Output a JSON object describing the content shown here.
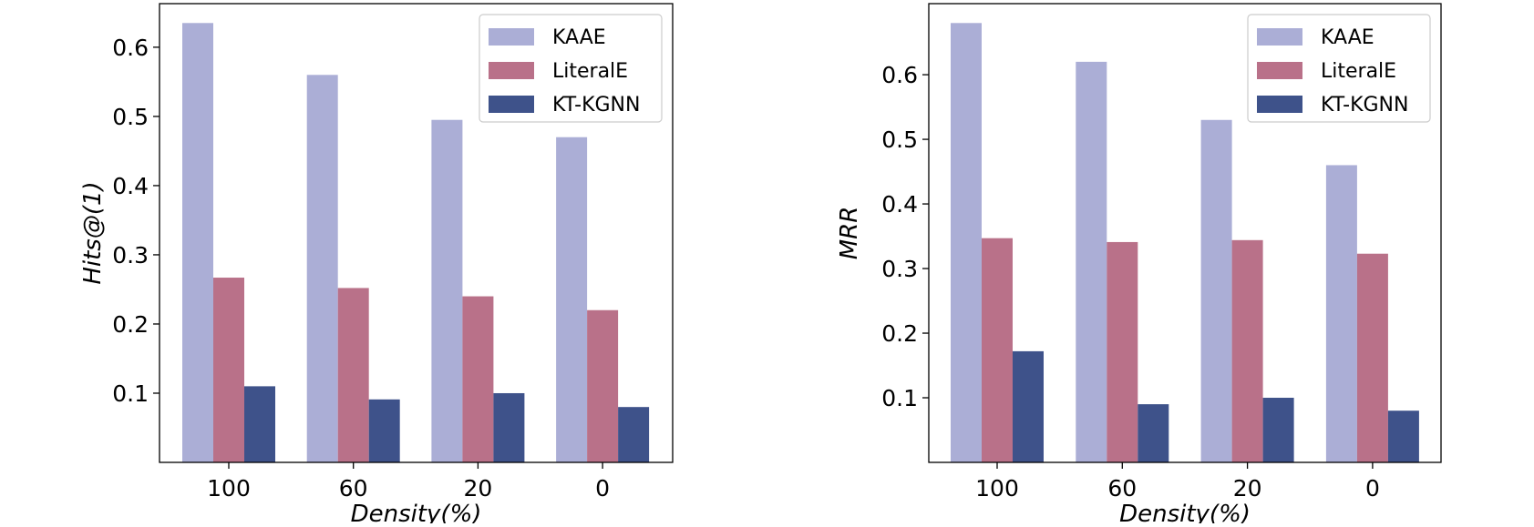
{
  "chart_data": [
    {
      "type": "bar",
      "categories": [
        "100",
        "60",
        "20",
        "0"
      ],
      "series": [
        {
          "name": "KAAE",
          "values": [
            0.635,
            0.56,
            0.495,
            0.47
          ]
        },
        {
          "name": "LiteralE",
          "values": [
            0.267,
            0.252,
            0.24,
            0.22
          ]
        },
        {
          "name": "KT-KGNN",
          "values": [
            0.11,
            0.091,
            0.1,
            0.08
          ]
        }
      ],
      "title": "",
      "xlabel": "Density(%)",
      "ylabel": "Hits@(1)",
      "ylim": [
        0.0,
        0.663
      ],
      "yticks": [
        "0.1",
        "0.2",
        "0.3",
        "0.4",
        "0.5",
        "0.6"
      ],
      "legend_position": "top-right",
      "grid": false
    },
    {
      "type": "bar",
      "categories": [
        "100",
        "60",
        "20",
        "0"
      ],
      "series": [
        {
          "name": "KAAE",
          "values": [
            0.68,
            0.62,
            0.53,
            0.46
          ]
        },
        {
          "name": "LiteralE",
          "values": [
            0.347,
            0.341,
            0.344,
            0.323
          ]
        },
        {
          "name": "KT-KGNN",
          "values": [
            0.172,
            0.09,
            0.1,
            0.08
          ]
        }
      ],
      "title": "",
      "xlabel": "Density(%)",
      "ylabel": "MRR",
      "ylim": [
        0.0,
        0.71
      ],
      "yticks": [
        "0.1",
        "0.2",
        "0.3",
        "0.4",
        "0.5",
        "0.6"
      ],
      "legend_position": "top-right",
      "grid": false
    }
  ],
  "colors": {
    "series": [
      "#abaed6",
      "#b97189",
      "#3e528a"
    ],
    "axis": "#000000",
    "legend_border": "#cccccc"
  }
}
